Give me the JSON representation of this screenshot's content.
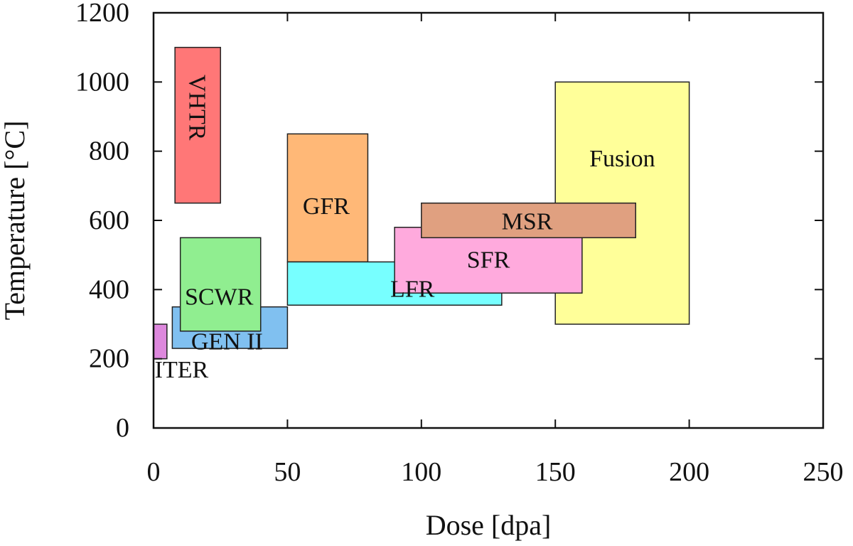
{
  "chart_data": {
    "type": "range-box",
    "xlabel": "Dose [dpa]",
    "ylabel": "Temperature [°C]",
    "xlim": [
      0,
      250
    ],
    "ylim": [
      0,
      1200
    ],
    "xticks": [
      0,
      50,
      100,
      150,
      200,
      250
    ],
    "yticks": [
      0,
      200,
      400,
      600,
      800,
      1000,
      1200
    ],
    "grid": false,
    "legend": "none",
    "regions": [
      {
        "name": "Fusion",
        "x": [
          150,
          200
        ],
        "y": [
          300,
          1000
        ],
        "color": "#ffff99"
      },
      {
        "name": "VHTR",
        "x": [
          8,
          25
        ],
        "y": [
          650,
          1100
        ],
        "color": "#ff7777",
        "label_vertical": true
      },
      {
        "name": "GFR",
        "x": [
          50,
          80
        ],
        "y": [
          480,
          850
        ],
        "color": "#ffb877"
      },
      {
        "name": "LFR",
        "x": [
          50,
          130
        ],
        "y": [
          355,
          480
        ],
        "color": "#77ffff"
      },
      {
        "name": "GEN II",
        "x": [
          7,
          50
        ],
        "y": [
          230,
          350
        ],
        "color": "#80c0f0"
      },
      {
        "name": "SCWR",
        "x": [
          10,
          40
        ],
        "y": [
          280,
          550
        ],
        "color": "#90ee90"
      },
      {
        "name": "ITER",
        "x": [
          0,
          5
        ],
        "y": [
          200,
          300
        ],
        "color": "#dd88dd"
      },
      {
        "name": "SFR",
        "x": [
          90,
          160
        ],
        "y": [
          390,
          580
        ],
        "color": "#ffaadd"
      },
      {
        "name": "MSR",
        "x": [
          100,
          180
        ],
        "y": [
          550,
          650
        ],
        "color": "#e0a080"
      }
    ]
  }
}
